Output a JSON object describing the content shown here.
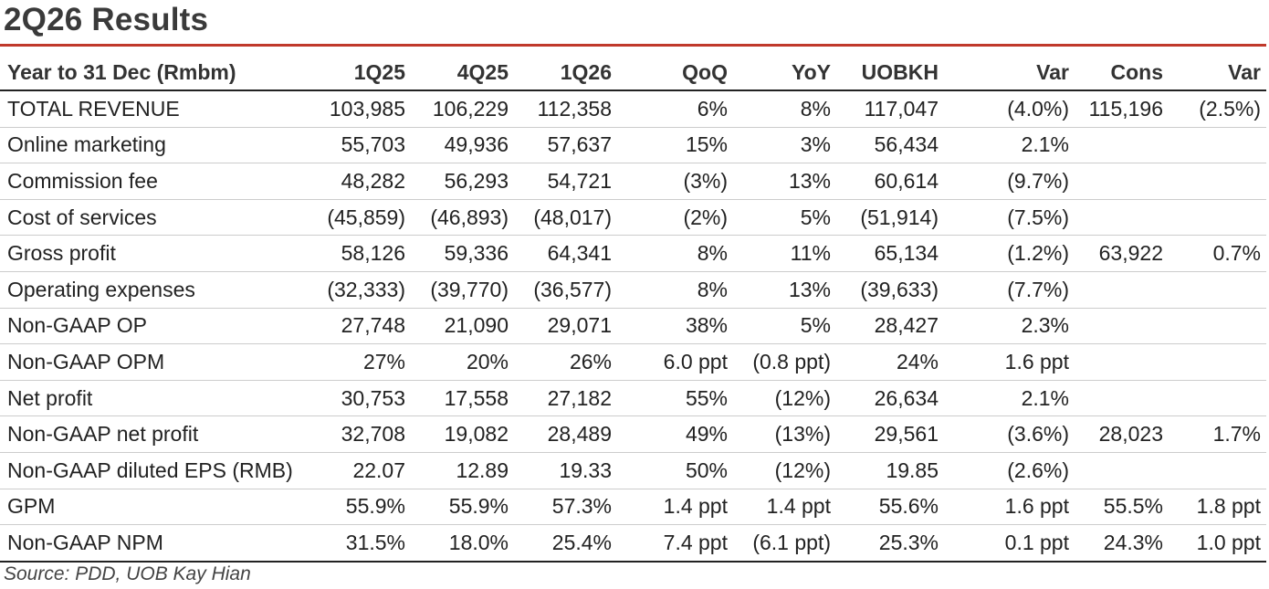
{
  "title": "2Q26 Results",
  "accent_color": "#c0392b",
  "table": {
    "headers": [
      "Year to 31 Dec (Rmbm)",
      "1Q25",
      "4Q25",
      "1Q26",
      "QoQ",
      "YoY",
      "UOBKH",
      "Var",
      "Cons",
      "Var"
    ],
    "rows": [
      [
        "TOTAL REVENUE",
        "103,985",
        "106,229",
        "112,358",
        "6%",
        "8%",
        "117,047",
        "(4.0%)",
        "115,196",
        "(2.5%)"
      ],
      [
        "Online marketing",
        "55,703",
        "49,936",
        "57,637",
        "15%",
        "3%",
        "56,434",
        "2.1%",
        "",
        ""
      ],
      [
        "Commission fee",
        "48,282",
        "56,293",
        "54,721",
        "(3%)",
        "13%",
        "60,614",
        "(9.7%)",
        "",
        ""
      ],
      [
        "Cost of services",
        "(45,859)",
        "(46,893)",
        "(48,017)",
        "(2%)",
        "5%",
        "(51,914)",
        "(7.5%)",
        "",
        ""
      ],
      [
        "Gross profit",
        "58,126",
        "59,336",
        "64,341",
        "8%",
        "11%",
        "65,134",
        "(1.2%)",
        "63,922",
        "0.7%"
      ],
      [
        "Operating expenses",
        "(32,333)",
        "(39,770)",
        "(36,577)",
        "8%",
        "13%",
        "(39,633)",
        "(7.7%)",
        "",
        ""
      ],
      [
        "Non-GAAP OP",
        "27,748",
        "21,090",
        "29,071",
        "38%",
        "5%",
        "28,427",
        "2.3%",
        "",
        ""
      ],
      [
        "Non-GAAP OPM",
        "27%",
        "20%",
        "26%",
        "6.0 ppt",
        "(0.8 ppt)",
        "24%",
        "1.6 ppt",
        "",
        ""
      ],
      [
        "Net profit",
        "30,753",
        "17,558",
        "27,182",
        "55%",
        "(12%)",
        "26,634",
        "2.1%",
        "",
        ""
      ],
      [
        "Non-GAAP net profit",
        "32,708",
        "19,082",
        "28,489",
        "49%",
        "(13%)",
        "29,561",
        "(3.6%)",
        "28,023",
        "1.7%"
      ],
      [
        "Non-GAAP diluted EPS (RMB)",
        "22.07",
        "12.89",
        "19.33",
        "50%",
        "(12%)",
        "19.85",
        "(2.6%)",
        "",
        ""
      ],
      [
        "GPM",
        "55.9%",
        "55.9%",
        "57.3%",
        "1.4 ppt",
        "1.4 ppt",
        "55.6%",
        "1.6 ppt",
        "55.5%",
        "1.8 ppt"
      ],
      [
        "Non-GAAP NPM",
        "31.5%",
        "18.0%",
        "25.4%",
        "7.4 ppt",
        "(6.1 ppt)",
        "25.3%",
        "0.1 ppt",
        "24.3%",
        "1.0 ppt"
      ]
    ]
  },
  "source": "Source: PDD, UOB Kay Hian"
}
